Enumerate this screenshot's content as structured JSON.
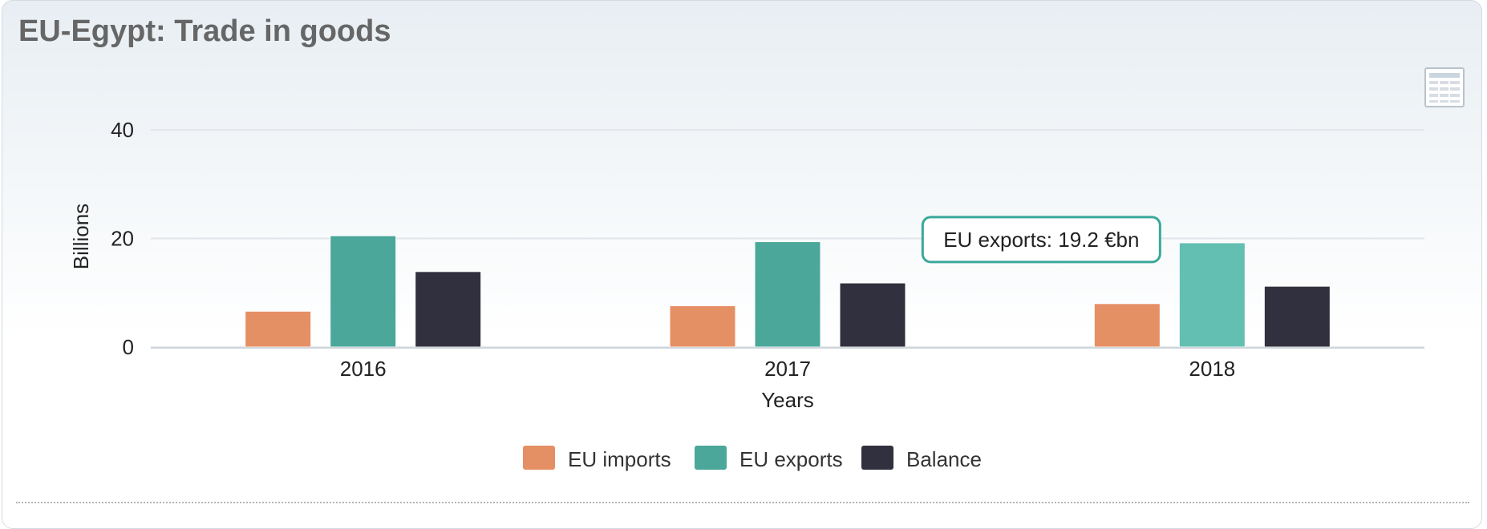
{
  "page_title": "EU-Egypt: Trade in goods",
  "colors": {
    "imports": "#e58f65",
    "exports": "#4aa79a",
    "exports_hover": "#63bfb2",
    "balance": "#30303e",
    "grid": "#e2e6ea",
    "tooltip_border": "#3aa89a"
  },
  "toolbar": {
    "table_view_icon": "table-icon"
  },
  "chart_data": {
    "type": "bar",
    "categories": [
      "2016",
      "2017",
      "2018"
    ],
    "series": [
      {
        "name": "EU imports",
        "values": [
          6.6,
          7.6,
          8.0
        ]
      },
      {
        "name": "EU exports",
        "values": [
          20.5,
          19.4,
          19.2
        ]
      },
      {
        "name": "Balance",
        "values": [
          13.9,
          11.8,
          11.2
        ]
      }
    ],
    "ylabel": "Billions",
    "xlabel": "Years",
    "yticks": [
      0,
      20,
      40
    ],
    "ylim": [
      0,
      40
    ],
    "grid": true,
    "legend_placement": "bottom-center",
    "tooltip": {
      "series_index": 1,
      "category_index": 2,
      "text": "EU exports: 19.2 €bn"
    }
  }
}
